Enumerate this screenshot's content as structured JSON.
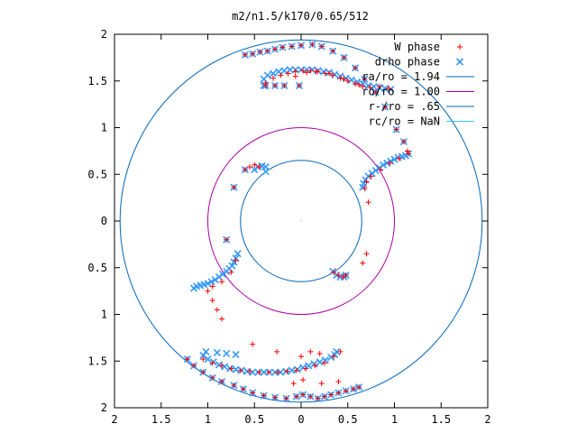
{
  "chart_data": {
    "type": "scatter",
    "title": "m2/n1.5/k170/0.65/512",
    "xlabel": "",
    "ylabel": "",
    "xlim": [
      -2,
      2
    ],
    "ylim": [
      -2,
      2
    ],
    "x_ticks": [
      -2,
      -1.5,
      -1,
      -0.5,
      0,
      0.5,
      1,
      1.5,
      2
    ],
    "y_ticks": [
      -2,
      -1.5,
      -1,
      -0.5,
      0,
      0.5,
      1,
      1.5,
      2
    ],
    "x_tick_labels": [
      "2",
      "1.5",
      "1",
      "0.5",
      "0",
      "0.5",
      "1",
      "1.5",
      "2"
    ],
    "y_tick_labels": [
      "2",
      "1.5",
      "1",
      "0.5",
      "0",
      "0.5",
      "1",
      "1.5",
      "2"
    ],
    "grid": false,
    "legend_position": "top-right",
    "series": [
      {
        "name": "W phase",
        "kind": "points",
        "marker": "plus",
        "color": "#ff0000",
        "points": [
          [
            -0.6,
            1.78
          ],
          [
            -0.52,
            1.79
          ],
          [
            -0.44,
            1.81
          ],
          [
            -0.36,
            1.82
          ],
          [
            -0.28,
            1.84
          ],
          [
            -0.2,
            1.86
          ],
          [
            -0.1,
            1.87
          ],
          [
            0.0,
            1.88
          ],
          [
            0.12,
            1.89
          ],
          [
            0.22,
            1.87
          ],
          [
            0.34,
            1.82
          ],
          [
            0.46,
            1.75
          ],
          [
            0.58,
            1.64
          ],
          [
            0.68,
            1.52
          ],
          [
            0.8,
            1.38
          ],
          [
            0.9,
            1.22
          ],
          [
            1.02,
            0.98
          ],
          [
            1.1,
            0.85
          ],
          [
            1.14,
            0.75
          ],
          [
            -0.38,
            1.48
          ],
          [
            -0.3,
            1.53
          ],
          [
            -0.22,
            1.56
          ],
          [
            -0.14,
            1.58
          ],
          [
            -0.06,
            1.6
          ],
          [
            0.02,
            1.61
          ],
          [
            0.1,
            1.61
          ],
          [
            0.18,
            1.6
          ],
          [
            0.26,
            1.58
          ],
          [
            0.34,
            1.56
          ],
          [
            0.42,
            1.53
          ],
          [
            0.5,
            1.5
          ],
          [
            0.58,
            1.47
          ],
          [
            0.66,
            1.44
          ],
          [
            0.74,
            1.43
          ],
          [
            -0.38,
            1.45
          ],
          [
            -0.28,
            1.45
          ],
          [
            -0.18,
            1.45
          ],
          [
            -0.02,
            1.45
          ],
          [
            -0.06,
            1.55
          ],
          [
            0.06,
            1.59
          ],
          [
            0.16,
            1.6
          ],
          [
            0.3,
            1.58
          ],
          [
            0.46,
            1.52
          ],
          [
            0.62,
            1.46
          ],
          [
            0.84,
            1.44
          ],
          [
            0.94,
            1.42
          ],
          [
            1.15,
            0.72
          ],
          [
            1.05,
            0.67
          ],
          [
            0.95,
            0.62
          ],
          [
            0.85,
            0.55
          ],
          [
            0.75,
            0.48
          ],
          [
            0.7,
            0.42
          ],
          [
            0.68,
            0.35
          ],
          [
            0.72,
            0.2
          ],
          [
            0.7,
            -0.35
          ],
          [
            0.66,
            -0.45
          ],
          [
            -0.6,
            0.55
          ],
          [
            -0.55,
            0.58
          ],
          [
            -0.5,
            0.6
          ],
          [
            -0.45,
            0.58
          ],
          [
            -0.72,
            0.36
          ],
          [
            -0.8,
            -0.2
          ],
          [
            0.35,
            -0.55
          ],
          [
            0.4,
            -0.58
          ],
          [
            0.45,
            -0.6
          ],
          [
            0.48,
            -0.58
          ],
          [
            -0.7,
            -0.42
          ],
          [
            -0.75,
            -0.55
          ],
          [
            -0.85,
            -0.65
          ],
          [
            -0.95,
            -0.7
          ],
          [
            -1.0,
            -0.75
          ],
          [
            -0.95,
            -0.85
          ],
          [
            -0.9,
            -0.95
          ],
          [
            -0.85,
            -1.05
          ],
          [
            -1.05,
            -1.48
          ],
          [
            -0.95,
            -1.52
          ],
          [
            -0.85,
            -1.55
          ],
          [
            -0.75,
            -1.58
          ],
          [
            -0.65,
            -1.6
          ],
          [
            -0.55,
            -1.61
          ],
          [
            -0.45,
            -1.62
          ],
          [
            -0.35,
            -1.62
          ],
          [
            -0.25,
            -1.62
          ],
          [
            -0.15,
            -1.61
          ],
          [
            -0.05,
            -1.6
          ],
          [
            0.05,
            -1.58
          ],
          [
            0.15,
            -1.55
          ],
          [
            0.25,
            -1.52
          ],
          [
            0.35,
            -1.45
          ],
          [
            0.42,
            -1.4
          ],
          [
            -0.52,
            -1.32
          ],
          [
            -0.26,
            -1.4
          ],
          [
            0.0,
            -1.45
          ],
          [
            0.1,
            -1.4
          ],
          [
            0.2,
            -1.42
          ],
          [
            -1.22,
            -1.48
          ],
          [
            -1.15,
            -1.55
          ],
          [
            -1.05,
            -1.62
          ],
          [
            -0.95,
            -1.68
          ],
          [
            -0.85,
            -1.72
          ],
          [
            -0.72,
            -1.76
          ],
          [
            -0.62,
            -1.8
          ],
          [
            -0.52,
            -1.84
          ],
          [
            -0.4,
            -1.87
          ],
          [
            -0.28,
            -1.89
          ],
          [
            -0.16,
            -1.9
          ],
          [
            -0.05,
            -1.88
          ],
          [
            0.02,
            -1.86
          ],
          [
            0.1,
            -1.88
          ],
          [
            0.18,
            -1.9
          ],
          [
            0.25,
            -1.88
          ],
          [
            0.32,
            -1.86
          ],
          [
            0.4,
            -1.84
          ],
          [
            0.48,
            -1.82
          ],
          [
            0.56,
            -1.8
          ],
          [
            0.62,
            -1.78
          ],
          [
            -0.08,
            -1.74
          ],
          [
            0.02,
            -1.7
          ],
          [
            0.22,
            -1.74
          ],
          [
            0.4,
            -1.72
          ]
        ]
      },
      {
        "name": "drho phase",
        "kind": "points",
        "marker": "cross",
        "color": "#3399ff",
        "points": [
          [
            -0.6,
            1.78
          ],
          [
            -0.52,
            1.79
          ],
          [
            -0.44,
            1.81
          ],
          [
            -0.36,
            1.82
          ],
          [
            -0.28,
            1.84
          ],
          [
            -0.2,
            1.86
          ],
          [
            -0.1,
            1.87
          ],
          [
            0.0,
            1.88
          ],
          [
            0.12,
            1.89
          ],
          [
            0.22,
            1.87
          ],
          [
            0.34,
            1.82
          ],
          [
            0.46,
            1.75
          ],
          [
            0.58,
            1.64
          ],
          [
            0.68,
            1.52
          ],
          [
            0.8,
            1.38
          ],
          [
            0.9,
            1.22
          ],
          [
            1.02,
            0.98
          ],
          [
            1.1,
            0.85
          ],
          [
            -0.4,
            1.45
          ],
          [
            -0.4,
            1.52
          ],
          [
            -0.36,
            1.56
          ],
          [
            -0.3,
            1.58
          ],
          [
            -0.24,
            1.6
          ],
          [
            -0.18,
            1.61
          ],
          [
            -0.12,
            1.62
          ],
          [
            -0.06,
            1.62
          ],
          [
            0.0,
            1.62
          ],
          [
            0.06,
            1.62
          ],
          [
            0.12,
            1.62
          ],
          [
            0.18,
            1.61
          ],
          [
            0.24,
            1.6
          ],
          [
            0.3,
            1.59
          ],
          [
            0.36,
            1.57
          ],
          [
            0.42,
            1.55
          ],
          [
            0.48,
            1.53
          ],
          [
            0.54,
            1.51
          ],
          [
            0.6,
            1.49
          ],
          [
            0.66,
            1.47
          ],
          [
            0.72,
            1.45
          ],
          [
            0.78,
            1.44
          ],
          [
            0.84,
            1.43
          ],
          [
            0.9,
            1.42
          ],
          [
            0.96,
            1.41
          ],
          [
            -0.38,
            1.45
          ],
          [
            -0.28,
            1.45
          ],
          [
            -0.18,
            1.45
          ],
          [
            -0.02,
            1.45
          ],
          [
            1.15,
            0.72
          ],
          [
            1.12,
            0.7
          ],
          [
            1.08,
            0.69
          ],
          [
            1.04,
            0.68
          ],
          [
            1.0,
            0.66
          ],
          [
            0.96,
            0.64
          ],
          [
            0.92,
            0.62
          ],
          [
            0.88,
            0.6
          ],
          [
            0.84,
            0.57
          ],
          [
            0.8,
            0.54
          ],
          [
            0.76,
            0.51
          ],
          [
            0.72,
            0.48
          ],
          [
            0.69,
            0.44
          ],
          [
            0.67,
            0.4
          ],
          [
            0.66,
            0.36
          ],
          [
            -0.5,
            0.55
          ],
          [
            -0.46,
            0.58
          ],
          [
            -0.42,
            0.59
          ],
          [
            -0.38,
            0.58
          ],
          [
            -0.38,
            0.53
          ],
          [
            -0.6,
            0.55
          ],
          [
            -0.72,
            0.36
          ],
          [
            -0.8,
            -0.2
          ],
          [
            0.34,
            -0.54
          ],
          [
            0.38,
            -0.58
          ],
          [
            0.42,
            -0.6
          ],
          [
            0.46,
            -0.6
          ],
          [
            0.48,
            -0.58
          ],
          [
            -0.68,
            -0.35
          ],
          [
            -0.7,
            -0.4
          ],
          [
            -0.72,
            -0.44
          ],
          [
            -0.74,
            -0.48
          ],
          [
            -0.77,
            -0.51
          ],
          [
            -0.8,
            -0.54
          ],
          [
            -0.84,
            -0.57
          ],
          [
            -0.88,
            -0.6
          ],
          [
            -0.92,
            -0.63
          ],
          [
            -0.96,
            -0.65
          ],
          [
            -1.0,
            -0.67
          ],
          [
            -1.04,
            -0.68
          ],
          [
            -1.08,
            -0.69
          ],
          [
            -1.12,
            -0.7
          ],
          [
            -1.15,
            -0.72
          ],
          [
            -1.05,
            -1.44
          ],
          [
            -1.0,
            -1.48
          ],
          [
            -0.94,
            -1.51
          ],
          [
            -0.88,
            -1.54
          ],
          [
            -0.82,
            -1.56
          ],
          [
            -0.76,
            -1.58
          ],
          [
            -0.7,
            -1.59
          ],
          [
            -0.64,
            -1.6
          ],
          [
            -0.58,
            -1.61
          ],
          [
            -0.52,
            -1.62
          ],
          [
            -0.46,
            -1.62
          ],
          [
            -0.4,
            -1.62
          ],
          [
            -0.34,
            -1.62
          ],
          [
            -0.28,
            -1.62
          ],
          [
            -0.22,
            -1.62
          ],
          [
            -0.16,
            -1.61
          ],
          [
            -0.1,
            -1.6
          ],
          [
            -0.04,
            -1.59
          ],
          [
            0.02,
            -1.57
          ],
          [
            0.08,
            -1.55
          ],
          [
            0.14,
            -1.53
          ],
          [
            0.2,
            -1.51
          ],
          [
            0.26,
            -1.49
          ],
          [
            0.32,
            -1.46
          ],
          [
            0.36,
            -1.43
          ],
          [
            0.38,
            -1.4
          ],
          [
            -1.02,
            -1.4
          ],
          [
            -0.9,
            -1.41
          ],
          [
            -0.8,
            -1.42
          ],
          [
            -0.7,
            -1.43
          ],
          [
            -1.22,
            -1.48
          ],
          [
            -1.15,
            -1.55
          ],
          [
            -1.05,
            -1.62
          ],
          [
            -0.95,
            -1.68
          ],
          [
            -0.85,
            -1.72
          ],
          [
            -0.72,
            -1.76
          ],
          [
            -0.62,
            -1.8
          ],
          [
            -0.52,
            -1.84
          ],
          [
            -0.4,
            -1.87
          ],
          [
            -0.28,
            -1.89
          ],
          [
            -0.16,
            -1.9
          ],
          [
            -0.05,
            -1.88
          ],
          [
            0.02,
            -1.86
          ],
          [
            0.1,
            -1.88
          ],
          [
            0.18,
            -1.9
          ],
          [
            0.25,
            -1.88
          ],
          [
            0.32,
            -1.86
          ],
          [
            0.4,
            -1.84
          ],
          [
            0.48,
            -1.82
          ],
          [
            0.56,
            -1.8
          ],
          [
            0.62,
            -1.78
          ]
        ]
      },
      {
        "name": "ra/ro = 1.94",
        "kind": "circle",
        "r": 1.94,
        "color": "#0066bb"
      },
      {
        "name": "ro/ro = 1.00",
        "kind": "circle",
        "r": 1.0,
        "color": "#aa00aa"
      },
      {
        "name": "r-/ro = .65",
        "kind": "circle",
        "r": 0.65,
        "color": "#0066bb"
      },
      {
        "name": "rc/ro = NaN",
        "kind": "circle",
        "r": null,
        "color": "#33ccee"
      }
    ]
  }
}
